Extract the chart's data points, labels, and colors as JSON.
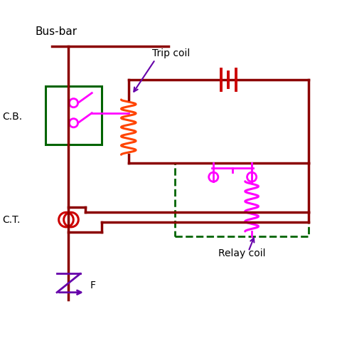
{
  "fig_width": 4.74,
  "fig_height": 4.86,
  "dpi": 100,
  "bg_color": "#ffffff",
  "dark_red": "#8B0000",
  "red": "#CC0000",
  "green": "#006400",
  "magenta": "#FF00FF",
  "purple": "#6600AA",
  "bus_bar_label": "Bus-bar",
  "cb_label": "C.B.",
  "ct_label": "C.T.",
  "f_label": "F",
  "trip_coil_label": "Trip coil",
  "relay_coil_label": "Relay coil"
}
